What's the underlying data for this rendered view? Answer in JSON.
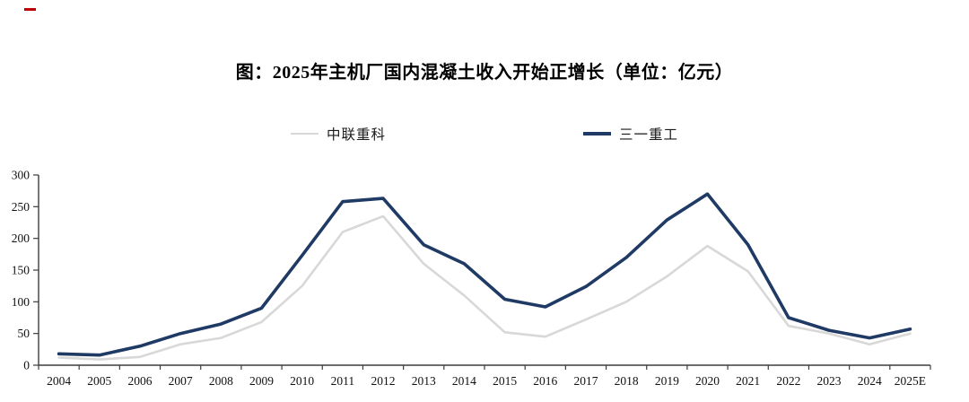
{
  "header": {
    "title": "图：2025年主机厂国内混凝土收入开始正增长（单位：亿元）"
  },
  "legend": {
    "items": [
      {
        "label": "中联重科",
        "color": "#D8D8D8"
      },
      {
        "label": "三一重工",
        "color": "#1F3A64"
      }
    ]
  },
  "decoration": {
    "red_dash_color": "#C00000"
  },
  "chart_data": {
    "type": "line",
    "title": "图：2025年主机厂国内混凝土收入开始正增长（单位：亿元）",
    "unit": "亿元",
    "categories": [
      "2004",
      "2005",
      "2006",
      "2007",
      "2008",
      "2009",
      "2010",
      "2011",
      "2012",
      "2013",
      "2014",
      "2015",
      "2016",
      "2017",
      "2018",
      "2019",
      "2020",
      "2021",
      "2022",
      "2023",
      "2024",
      "2025E"
    ],
    "series": [
      {
        "name": "中联重科",
        "color": "#D8D8D8",
        "values": [
          12,
          9,
          13,
          33,
          43,
          68,
          125,
          210,
          235,
          160,
          110,
          52,
          45,
          72,
          100,
          140,
          188,
          148,
          62,
          50,
          33,
          50
        ]
      },
      {
        "name": "三一重工",
        "color": "#1F3A64",
        "values": [
          18,
          16,
          30,
          50,
          65,
          90,
          173,
          258,
          263,
          190,
          160,
          104,
          92,
          124,
          170,
          229,
          270,
          190,
          75,
          55,
          43,
          57
        ]
      }
    ],
    "xlabel": "",
    "ylabel": "",
    "ylim": [
      0,
      300
    ],
    "yticks": [
      0,
      50,
      100,
      150,
      200,
      250,
      300
    ],
    "grid": false,
    "legend_position": "top"
  }
}
